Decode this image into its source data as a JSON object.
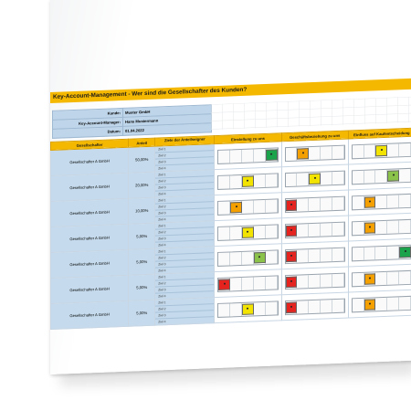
{
  "title": "Key-Account-Management - Wer sind die Gesellschafter des Kunden?",
  "info": [
    {
      "label": "Kunde:",
      "value": "Muster GmbH"
    },
    {
      "label": "Key-Account-Manager:",
      "value": "Hans Mustermann"
    },
    {
      "label": "Datum:",
      "value": "01.04.2022"
    }
  ],
  "headers": {
    "shareholder": "Gesellschafter",
    "share": "Anteil",
    "goals": "Ziele der Anteilseigner",
    "attitude": "Einstellung zu uns",
    "relationship": "Geschäftsbeziehung zu uns",
    "influence": "Einfluss auf Kaufentscheidung"
  },
  "goal_labels": [
    "Ziel 1",
    "Ziel 2",
    "Ziel 3",
    "Ziel 4"
  ],
  "colors": {
    "accent": "#f5b800",
    "panel": "#c5dbed",
    "red": "#e52420",
    "orange": "#f4a000",
    "yellow": "#f2e400",
    "light_green": "#8bc34a",
    "green": "#1aa34a"
  },
  "rows": [
    {
      "name": "Gesellschafter A GmbH",
      "share": "50,00%",
      "ratings": [
        4,
        1,
        2
      ]
    },
    {
      "name": "Gesellschafter A GmbH",
      "share": "20,00%",
      "ratings": [
        2,
        2,
        3
      ]
    },
    {
      "name": "Gesellschafter A GmbH",
      "share": "10,00%",
      "ratings": [
        1,
        0,
        1
      ]
    },
    {
      "name": "Gesellschafter A GmbH",
      "share": "5,00%",
      "ratings": [
        2,
        0,
        1
      ]
    },
    {
      "name": "Gesellschafter A GmbH",
      "share": "5,00%",
      "ratings": [
        3,
        0,
        4
      ]
    },
    {
      "name": "Gesellschafter A GmbH",
      "share": "5,00%",
      "ratings": [
        0,
        0,
        1
      ]
    },
    {
      "name": "Gesellschafter A GmbH",
      "share": "5,00%",
      "ratings": [
        2,
        0,
        1
      ]
    }
  ]
}
